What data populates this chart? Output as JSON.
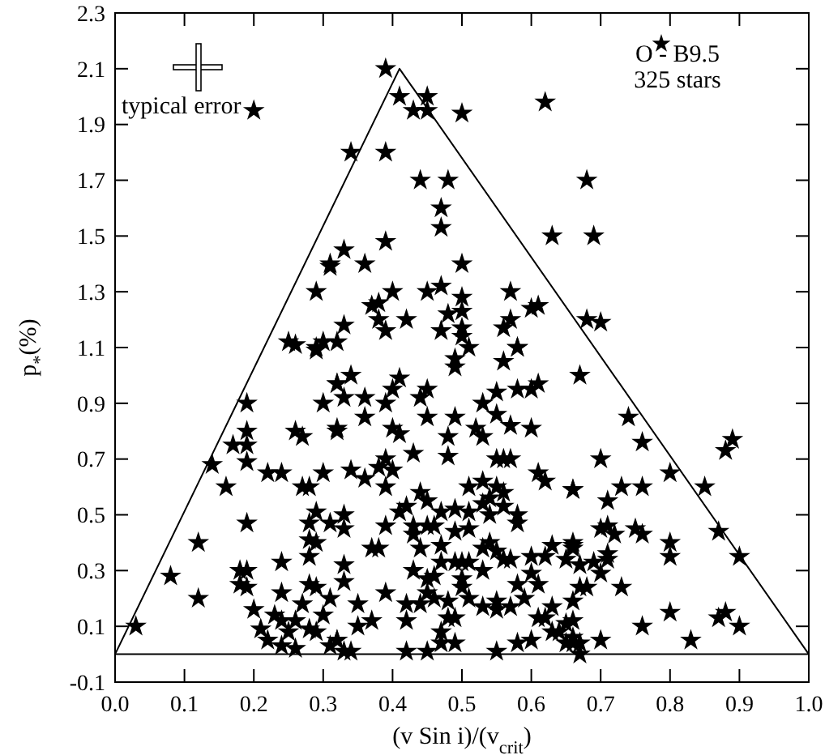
{
  "chart_data": {
    "type": "scatter",
    "xlabel": "(v Sin i)/(v$_{crit}$)",
    "ylabel": "p$_{*}$(%)",
    "annotations": [
      "typical error",
      "O - B9.5",
      "325 stars"
    ],
    "xlim": [
      0,
      1
    ],
    "xticks": [
      {
        "value": 0,
        "label": "0.0"
      },
      0.1,
      0.2,
      0.3,
      0.4,
      0.5,
      0.6,
      0.7,
      0.8,
      0.9,
      {
        "value": 1,
        "label": "1.0"
      }
    ],
    "ylim": [
      -0.1,
      2.3
    ],
    "yticks": [
      -0.1,
      0.1,
      0.3,
      0.5,
      0.7,
      0.9,
      1.1,
      1.3,
      1.5,
      1.7,
      1.9,
      2.1,
      2.3
    ],
    "grid": false,
    "ref_lines": [
      {
        "axis": "y",
        "value": 0,
        "color": "#000000"
      }
    ],
    "series": [
      {
        "color": "#000000",
        "marker": "star",
        "x": [
          0.39,
          0.41,
          0.45,
          0.43,
          0.45,
          0.5,
          0.62,
          0.34,
          0.39,
          0.44,
          0.48,
          0.47,
          0.47,
          0.63,
          0.39,
          0.33,
          0.31,
          0.36,
          0.5,
          0.4,
          0.45,
          0.47,
          0.37,
          0.38,
          0.5,
          0.57,
          0.6,
          0.61,
          0.38,
          0.42,
          0.48,
          0.5,
          0.47,
          0.5,
          0.5,
          0.33,
          0.39,
          0.56,
          0.57,
          0.58,
          0.32,
          0.68,
          0.69,
          0.68,
          0.7,
          0.2,
          0.31,
          0.29,
          0.25,
          0.26,
          0.29,
          0.3,
          0.29,
          0.32,
          0.19,
          0.3,
          0.19,
          0.26,
          0.27,
          0.32,
          0.17,
          0.19,
          0.19,
          0.14,
          0.22,
          0.24,
          0.3,
          0.27,
          0.28,
          0.16,
          0.19,
          0.29,
          0.28,
          0.31,
          0.28,
          0.29,
          0.28,
          0.12,
          0.24,
          0.18,
          0.19,
          0.08,
          0.18,
          0.19,
          0.12,
          0.24,
          0.28,
          0.29,
          0.27,
          0.31,
          0.2,
          0.23,
          0.21,
          0.24,
          0.26,
          0.25,
          0.28,
          0.29,
          0.3,
          0.22,
          0.24,
          0.26,
          0.31,
          0.32,
          0.03,
          0.34,
          0.32,
          0.33,
          0.36,
          0.36,
          0.39,
          0.4,
          0.41,
          0.44,
          0.45,
          0.45,
          0.49,
          0.49,
          0.49,
          0.51,
          0.56,
          0.58,
          0.53,
          0.55,
          0.55,
          0.58,
          0.6,
          0.61,
          0.32,
          0.4,
          0.41,
          0.48,
          0.48,
          0.43,
          0.52,
          0.53,
          0.57,
          0.6,
          0.55,
          0.56,
          0.57,
          0.34,
          0.36,
          0.38,
          0.39,
          0.4,
          0.39,
          0.61,
          0.62,
          0.66,
          0.44,
          0.45,
          0.42,
          0.41,
          0.51,
          0.53,
          0.55,
          0.54,
          0.56,
          0.53,
          0.51,
          0.47,
          0.49,
          0.54,
          0.56,
          0.58,
          0.58,
          0.33,
          0.33,
          0.39,
          0.43,
          0.45,
          0.46,
          0.43,
          0.44,
          0.49,
          0.51,
          0.47,
          0.37,
          0.38,
          0.53,
          0.54,
          0.55,
          0.56,
          0.57,
          0.6,
          0.62,
          0.63,
          0.66,
          0.65,
          0.47,
          0.49,
          0.5,
          0.51,
          0.33,
          0.33,
          0.43,
          0.45,
          0.46,
          0.5,
          0.53,
          0.58,
          0.6,
          0.61,
          0.39,
          0.42,
          0.44,
          0.45,
          0.46,
          0.48,
          0.5,
          0.51,
          0.53,
          0.55,
          0.55,
          0.57,
          0.59,
          0.61,
          0.62,
          0.63,
          0.63,
          0.64,
          0.65,
          0.66,
          0.42,
          0.48,
          0.49,
          0.47,
          0.35,
          0.37,
          0.35,
          0.32,
          0.33,
          0.34,
          0.47,
          0.49,
          0.42,
          0.45,
          0.55,
          0.58,
          0.6,
          0.65,
          0.66,
          0.67,
          0.74,
          0.76,
          0.7,
          0.89,
          0.88,
          0.8,
          0.85,
          0.73,
          0.76,
          0.66,
          0.71,
          0.7,
          0.71,
          0.72,
          0.75,
          0.76,
          0.87,
          0.9,
          0.8,
          0.8,
          0.71,
          0.71,
          0.69,
          0.67,
          0.7,
          0.66,
          0.66,
          0.67,
          0.68,
          0.73,
          0.66,
          0.76,
          0.8,
          0.87,
          0.88,
          0.9,
          0.83,
          0.7,
          0.66,
          0.67,
          0.67
        ],
        "values": [
          2.1,
          2.0,
          2.0,
          1.95,
          1.95,
          1.94,
          1.98,
          1.8,
          1.8,
          1.7,
          1.7,
          1.6,
          1.53,
          1.5,
          1.48,
          1.45,
          1.39,
          1.4,
          1.4,
          1.3,
          1.3,
          1.32,
          1.25,
          1.26,
          1.28,
          1.3,
          1.24,
          1.25,
          1.2,
          1.2,
          1.22,
          1.23,
          1.16,
          1.17,
          1.14,
          1.18,
          1.16,
          1.17,
          1.2,
          1.1,
          1.12,
          1.7,
          1.5,
          1.2,
          1.19,
          1.95,
          1.4,
          1.3,
          1.12,
          1.11,
          1.1,
          1.12,
          1.09,
          0.97,
          0.9,
          0.9,
          0.8,
          0.8,
          0.78,
          0.8,
          0.75,
          0.75,
          0.69,
          0.68,
          0.65,
          0.65,
          0.65,
          0.6,
          0.6,
          0.6,
          0.47,
          0.51,
          0.47,
          0.47,
          0.41,
          0.4,
          0.35,
          0.4,
          0.33,
          0.3,
          0.3,
          0.28,
          0.25,
          0.24,
          0.2,
          0.22,
          0.25,
          0.24,
          0.18,
          0.2,
          0.16,
          0.14,
          0.09,
          0.12,
          0.12,
          0.08,
          0.09,
          0.08,
          0.14,
          0.05,
          0.03,
          0.02,
          0.03,
          0.05,
          0.1,
          1.0,
          0.97,
          0.92,
          0.92,
          0.85,
          0.9,
          0.95,
          0.99,
          0.92,
          0.95,
          0.85,
          0.85,
          1.06,
          1.03,
          1.1,
          1.05,
          1.1,
          0.9,
          0.94,
          0.86,
          0.95,
          0.95,
          0.97,
          0.81,
          0.81,
          0.79,
          0.78,
          0.71,
          0.72,
          0.81,
          0.78,
          0.82,
          0.81,
          0.7,
          0.7,
          0.7,
          0.66,
          0.63,
          0.67,
          0.7,
          0.66,
          0.6,
          0.65,
          0.62,
          0.59,
          0.58,
          0.55,
          0.53,
          0.51,
          0.6,
          0.62,
          0.6,
          0.56,
          0.58,
          0.54,
          0.51,
          0.51,
          0.52,
          0.5,
          0.53,
          0.5,
          0.47,
          0.5,
          0.45,
          0.46,
          0.46,
          0.46,
          0.46,
          0.43,
          0.38,
          0.44,
          0.45,
          0.39,
          0.38,
          0.38,
          0.38,
          0.4,
          0.37,
          0.34,
          0.34,
          0.35,
          0.35,
          0.39,
          0.39,
          0.34,
          0.33,
          0.33,
          0.33,
          0.33,
          0.32,
          0.26,
          0.3,
          0.27,
          0.28,
          0.27,
          0.3,
          0.25,
          0.29,
          0.25,
          0.22,
          0.18,
          0.18,
          0.22,
          0.2,
          0.19,
          0.24,
          0.2,
          0.17,
          0.19,
          0.16,
          0.17,
          0.2,
          0.13,
          0.13,
          0.17,
          0.08,
          0.08,
          0.11,
          0.12,
          0.12,
          0.13,
          0.13,
          0.08,
          0.18,
          0.12,
          0.1,
          0.05,
          0.01,
          0.01,
          0.04,
          0.04,
          0.01,
          0.01,
          0.01,
          0.04,
          0.05,
          0.04,
          0.06,
          1.0,
          0.85,
          0.76,
          0.7,
          0.77,
          0.73,
          0.65,
          0.6,
          0.6,
          0.6,
          0.59,
          0.55,
          0.45,
          0.46,
          0.43,
          0.45,
          0.43,
          0.44,
          0.35,
          0.4,
          0.35,
          0.36,
          0.34,
          0.33,
          0.32,
          0.29,
          0.4,
          0.38,
          0.24,
          0.24,
          0.24,
          0.19,
          0.1,
          0.15,
          0.13,
          0.15,
          0.1,
          0.05,
          0.05,
          0.04,
          0.04,
          0.0
        ]
      },
      {
        "type": "line",
        "color": "#000000",
        "marker": "none",
        "x": [
          0,
          0.41,
          1
        ],
        "values": [
          0,
          2.1,
          0
        ]
      }
    ]
  }
}
